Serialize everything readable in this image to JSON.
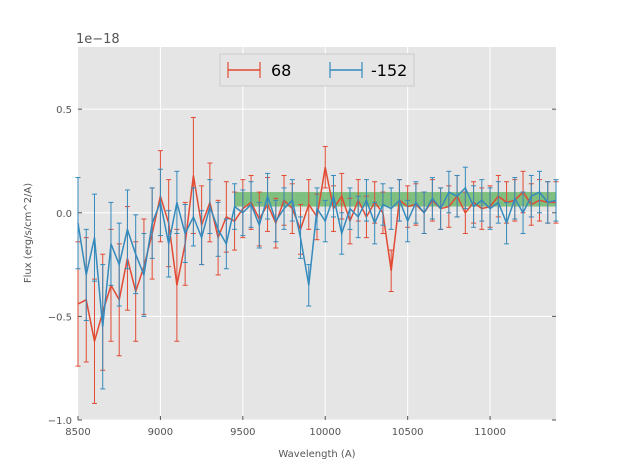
{
  "chart_data": {
    "type": "line",
    "title": "",
    "xlabel": "Wavelength (A)",
    "ylabel": "Flux (erg/s/cm^2/A)",
    "y_offset_label": "1e−18",
    "y_scale": 1e-18,
    "xlim": [
      8500,
      11400
    ],
    "ylim": [
      -1.0,
      0.8
    ],
    "x_ticks": [
      8500,
      9000,
      9500,
      10000,
      10500,
      11000
    ],
    "x_tick_labels": [
      "8500",
      "9000",
      "9500",
      "10000",
      "10500",
      "11000"
    ],
    "y_ticks": [
      -1.0,
      -0.5,
      0.0,
      0.5
    ],
    "y_tick_labels": [
      "−1.0",
      "−0.5",
      "0.0",
      "0.5"
    ],
    "grid": true,
    "legend_position": "top-center",
    "band": {
      "color": "#2ca02c",
      "x_start": 9450,
      "x_end": 11400,
      "y_low": 0.03,
      "y_high": 0.1
    },
    "series": [
      {
        "name": "68",
        "color": "#e24a33",
        "x": [
          8500,
          8550,
          8600,
          8650,
          8700,
          8750,
          8800,
          8850,
          8900,
          8950,
          9000,
          9050,
          9100,
          9150,
          9200,
          9250,
          9300,
          9350,
          9400,
          9450,
          9500,
          9550,
          9600,
          9650,
          9700,
          9750,
          9800,
          9850,
          9900,
          9950,
          10000,
          10050,
          10100,
          10150,
          10200,
          10250,
          10300,
          10350,
          10400,
          10450,
          10500,
          10550,
          10600,
          10650,
          10700,
          10750,
          10800,
          10850,
          10900,
          10950,
          11000,
          11050,
          11100,
          11150,
          11200,
          11250,
          11300,
          11350,
          11400
        ],
        "y": [
          -0.44,
          -0.42,
          -0.62,
          -0.48,
          -0.35,
          -0.42,
          -0.22,
          -0.38,
          -0.26,
          -0.1,
          0.08,
          -0.05,
          -0.35,
          -0.15,
          0.18,
          -0.06,
          0.05,
          -0.12,
          -0.02,
          -0.04,
          0.02,
          0.05,
          -0.03,
          0.04,
          -0.05,
          0.06,
          0.02,
          -0.08,
          0.04,
          -0.02,
          0.22,
          0.02,
          0.08,
          -0.04,
          0.06,
          -0.02,
          0.05,
          0.0,
          -0.28,
          0.06,
          0.03,
          0.04,
          0.0,
          0.06,
          0.02,
          0.03,
          0.08,
          0.0,
          0.05,
          0.02,
          0.03,
          0.08,
          0.05,
          0.06,
          0.1,
          0.04,
          0.06,
          0.05,
          0.05
        ],
        "yerr": [
          0.3,
          0.3,
          0.3,
          0.28,
          0.27,
          0.27,
          0.25,
          0.24,
          0.23,
          0.22,
          0.22,
          0.21,
          0.27,
          0.2,
          0.28,
          0.19,
          0.19,
          0.18,
          0.17,
          0.14,
          0.14,
          0.13,
          0.13,
          0.13,
          0.12,
          0.12,
          0.12,
          0.12,
          0.12,
          0.11,
          0.1,
          0.11,
          0.11,
          0.11,
          0.1,
          0.1,
          0.1,
          0.1,
          0.1,
          0.1,
          0.1,
          0.1,
          0.1,
          0.1,
          0.1,
          0.1,
          0.1,
          0.1,
          0.1,
          0.1,
          0.1,
          0.1,
          0.1,
          0.1,
          0.1,
          0.1,
          0.1,
          0.1,
          0.1
        ]
      },
      {
        "name": "-152",
        "color": "#348abd",
        "x": [
          8500,
          8550,
          8600,
          8650,
          8700,
          8750,
          8800,
          8850,
          8900,
          8950,
          9000,
          9050,
          9100,
          9150,
          9200,
          9250,
          9300,
          9350,
          9400,
          9450,
          9500,
          9550,
          9600,
          9650,
          9700,
          9750,
          9800,
          9850,
          9900,
          9950,
          10000,
          10050,
          10100,
          10150,
          10200,
          10250,
          10300,
          10350,
          10400,
          10450,
          10500,
          10550,
          10600,
          10650,
          10700,
          10750,
          10800,
          10850,
          10900,
          10950,
          11000,
          11050,
          11100,
          11150,
          11200,
          11250,
          11300,
          11350,
          11400
        ],
        "y": [
          -0.05,
          -0.3,
          -0.12,
          -0.55,
          -0.15,
          -0.25,
          -0.08,
          -0.2,
          -0.3,
          -0.05,
          0.05,
          -0.15,
          0.05,
          -0.1,
          -0.02,
          -0.12,
          0.03,
          -0.08,
          -0.15,
          0.03,
          0.0,
          0.04,
          -0.06,
          0.08,
          -0.04,
          0.02,
          0.06,
          -0.12,
          -0.35,
          0.02,
          -0.04,
          0.08,
          -0.1,
          0.02,
          -0.02,
          0.06,
          -0.05,
          0.04,
          0.02,
          0.06,
          -0.04,
          0.05,
          0.0,
          0.07,
          0.02,
          0.1,
          0.08,
          0.12,
          0.03,
          0.06,
          0.02,
          0.05,
          -0.05,
          0.07,
          0.0,
          0.08,
          0.1,
          0.05,
          0.06
        ],
        "yerr": [
          0.22,
          0.22,
          0.21,
          0.3,
          0.2,
          0.2,
          0.19,
          0.19,
          0.2,
          0.17,
          0.16,
          0.16,
          0.15,
          0.14,
          0.14,
          0.13,
          0.13,
          0.13,
          0.12,
          0.11,
          0.11,
          0.11,
          0.11,
          0.11,
          0.1,
          0.1,
          0.1,
          0.1,
          0.1,
          0.1,
          0.1,
          0.1,
          0.1,
          0.1,
          0.1,
          0.1,
          0.1,
          0.1,
          0.1,
          0.1,
          0.1,
          0.1,
          0.1,
          0.1,
          0.1,
          0.1,
          0.1,
          0.1,
          0.1,
          0.1,
          0.1,
          0.1,
          0.1,
          0.1,
          0.1,
          0.1,
          0.1,
          0.1,
          0.1
        ]
      }
    ]
  }
}
